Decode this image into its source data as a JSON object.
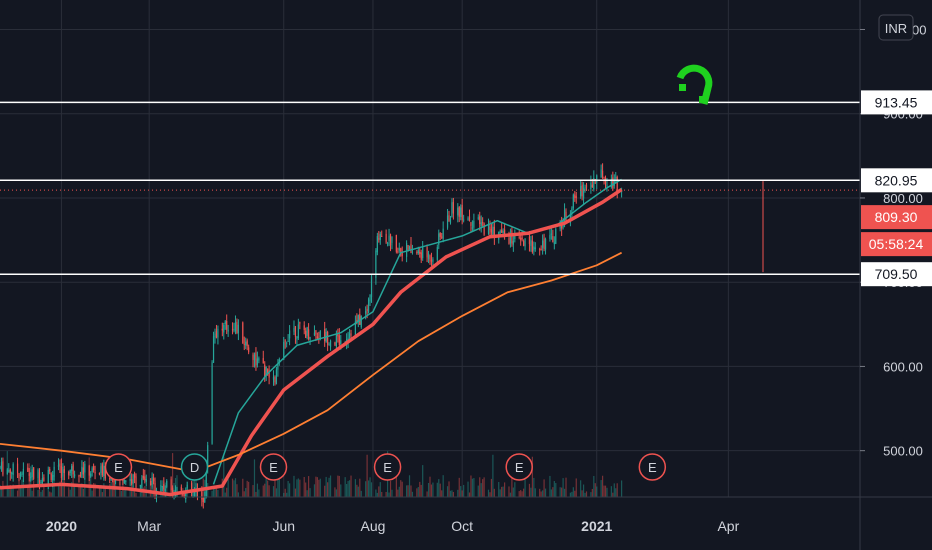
{
  "chart_data": {
    "type": "candlestick",
    "currency": "INR",
    "y_axis": {
      "range": [
        445,
        1035
      ],
      "ticks": [
        500,
        600,
        700,
        800,
        900,
        1000
      ],
      "tick_labels": [
        "500.00",
        "600.00",
        "700.00",
        "800.00",
        "900.00",
        "1000.00"
      ]
    },
    "x_axis": {
      "range": [
        "2019-11-20",
        "2021-06-30"
      ],
      "ticks": [
        {
          "date": "2020-01-01",
          "label": "2020",
          "bold": true
        },
        {
          "date": "2020-03-01",
          "label": "Mar",
          "bold": false
        },
        {
          "date": "2020-06-01",
          "label": "Jun",
          "bold": false
        },
        {
          "date": "2020-08-01",
          "label": "Aug",
          "bold": false
        },
        {
          "date": "2020-10-01",
          "label": "Oct",
          "bold": false
        },
        {
          "date": "2021-01-01",
          "label": "2021",
          "bold": true
        },
        {
          "date": "2021-04-01",
          "label": "Apr",
          "bold": false
        }
      ]
    },
    "horizontal_lines": [
      {
        "value": 913.45,
        "label": "913.45",
        "color": "#ffffff"
      },
      {
        "value": 820.95,
        "label": "820.95",
        "color": "#ffffff"
      },
      {
        "value": 709.5,
        "label": "709.50",
        "color": "#ffffff"
      }
    ],
    "current_price": {
      "value": 809.3,
      "label": "809.30",
      "color": "#ef5350"
    },
    "countdown": {
      "label": "05:58:24",
      "color": "#ef5350"
    },
    "price_path": [
      [
        "2019-11-20",
        480
      ],
      [
        "2019-12-15",
        470
      ],
      [
        "2020-01-10",
        478
      ],
      [
        "2020-02-05",
        472
      ],
      [
        "2020-02-25",
        462
      ],
      [
        "2020-03-20",
        455
      ],
      [
        "2020-04-08",
        445
      ],
      [
        "2020-04-14",
        640
      ],
      [
        "2020-04-28",
        650
      ],
      [
        "2020-05-12",
        610
      ],
      [
        "2020-05-25",
        580
      ],
      [
        "2020-06-05",
        645
      ],
      [
        "2020-06-20",
        640
      ],
      [
        "2020-07-10",
        630
      ],
      [
        "2020-07-28",
        665
      ],
      [
        "2020-08-05",
        760
      ],
      [
        "2020-08-20",
        740
      ],
      [
        "2020-09-10",
        730
      ],
      [
        "2020-09-25",
        790
      ],
      [
        "2020-10-10",
        770
      ],
      [
        "2020-10-30",
        755
      ],
      [
        "2020-11-15",
        742
      ],
      [
        "2020-12-01",
        750
      ],
      [
        "2020-12-20",
        808
      ],
      [
        "2021-01-05",
        828
      ],
      [
        "2021-01-18",
        812
      ]
    ],
    "moving_averages": [
      {
        "period": 20,
        "color": "#26a69a",
        "points": [
          [
            "2020-04-14",
            460
          ],
          [
            "2020-05-01",
            545
          ],
          [
            "2020-05-20",
            590
          ],
          [
            "2020-06-10",
            625
          ],
          [
            "2020-07-10",
            640
          ],
          [
            "2020-08-01",
            665
          ],
          [
            "2020-08-20",
            735
          ],
          [
            "2020-09-10",
            745
          ],
          [
            "2020-10-01",
            755
          ],
          [
            "2020-10-25",
            773
          ],
          [
            "2020-11-15",
            758
          ],
          [
            "2020-12-05",
            768
          ],
          [
            "2020-12-25",
            795
          ],
          [
            "2021-01-08",
            812
          ],
          [
            "2021-01-18",
            822
          ]
        ]
      },
      {
        "period": 50,
        "color": "#ef5350",
        "points": [
          [
            "2019-11-20",
            456
          ],
          [
            "2020-01-01",
            460
          ],
          [
            "2020-02-15",
            455
          ],
          [
            "2020-03-15",
            448
          ],
          [
            "2020-04-20",
            458
          ],
          [
            "2020-05-10",
            518
          ],
          [
            "2020-06-01",
            572
          ],
          [
            "2020-07-01",
            612
          ],
          [
            "2020-08-01",
            650
          ],
          [
            "2020-08-20",
            688
          ],
          [
            "2020-09-20",
            730
          ],
          [
            "2020-10-20",
            754
          ],
          [
            "2020-11-15",
            758
          ],
          [
            "2020-12-10",
            770
          ],
          [
            "2021-01-05",
            795
          ],
          [
            "2021-01-18",
            810
          ]
        ]
      },
      {
        "period": 200,
        "color": "#ff7f32",
        "points": [
          [
            "2019-11-20",
            508
          ],
          [
            "2020-01-01",
            500
          ],
          [
            "2020-02-15",
            490
          ],
          [
            "2020-04-01",
            475
          ],
          [
            "2020-05-01",
            495
          ],
          [
            "2020-06-01",
            520
          ],
          [
            "2020-07-01",
            548
          ],
          [
            "2020-08-01",
            590
          ],
          [
            "2020-09-01",
            630
          ],
          [
            "2020-10-01",
            660
          ],
          [
            "2020-11-01",
            688
          ],
          [
            "2020-12-01",
            702
          ],
          [
            "2021-01-01",
            720
          ],
          [
            "2021-01-18",
            735
          ]
        ]
      }
    ],
    "events": [
      {
        "date": "2020-02-09",
        "label": "E",
        "color": "#ef5350"
      },
      {
        "date": "2020-04-01",
        "label": "D",
        "color": "#26a69a"
      },
      {
        "date": "2020-05-25",
        "label": "E",
        "color": "#ef5350"
      },
      {
        "date": "2020-08-11",
        "label": "E",
        "color": "#ef5350"
      },
      {
        "date": "2020-11-09",
        "label": "E",
        "color": "#ef5350"
      },
      {
        "date": "2021-02-08",
        "label": "E",
        "color": "#ef5350"
      }
    ]
  },
  "logo_icon": "magnet-icon",
  "colors": {
    "background": "#131722",
    "grid": "#2a2e39",
    "up": "#26a69a",
    "down": "#ef5350",
    "label_bg": "#ffffff",
    "label_text": "#131722",
    "logo": "#1fd11f"
  }
}
